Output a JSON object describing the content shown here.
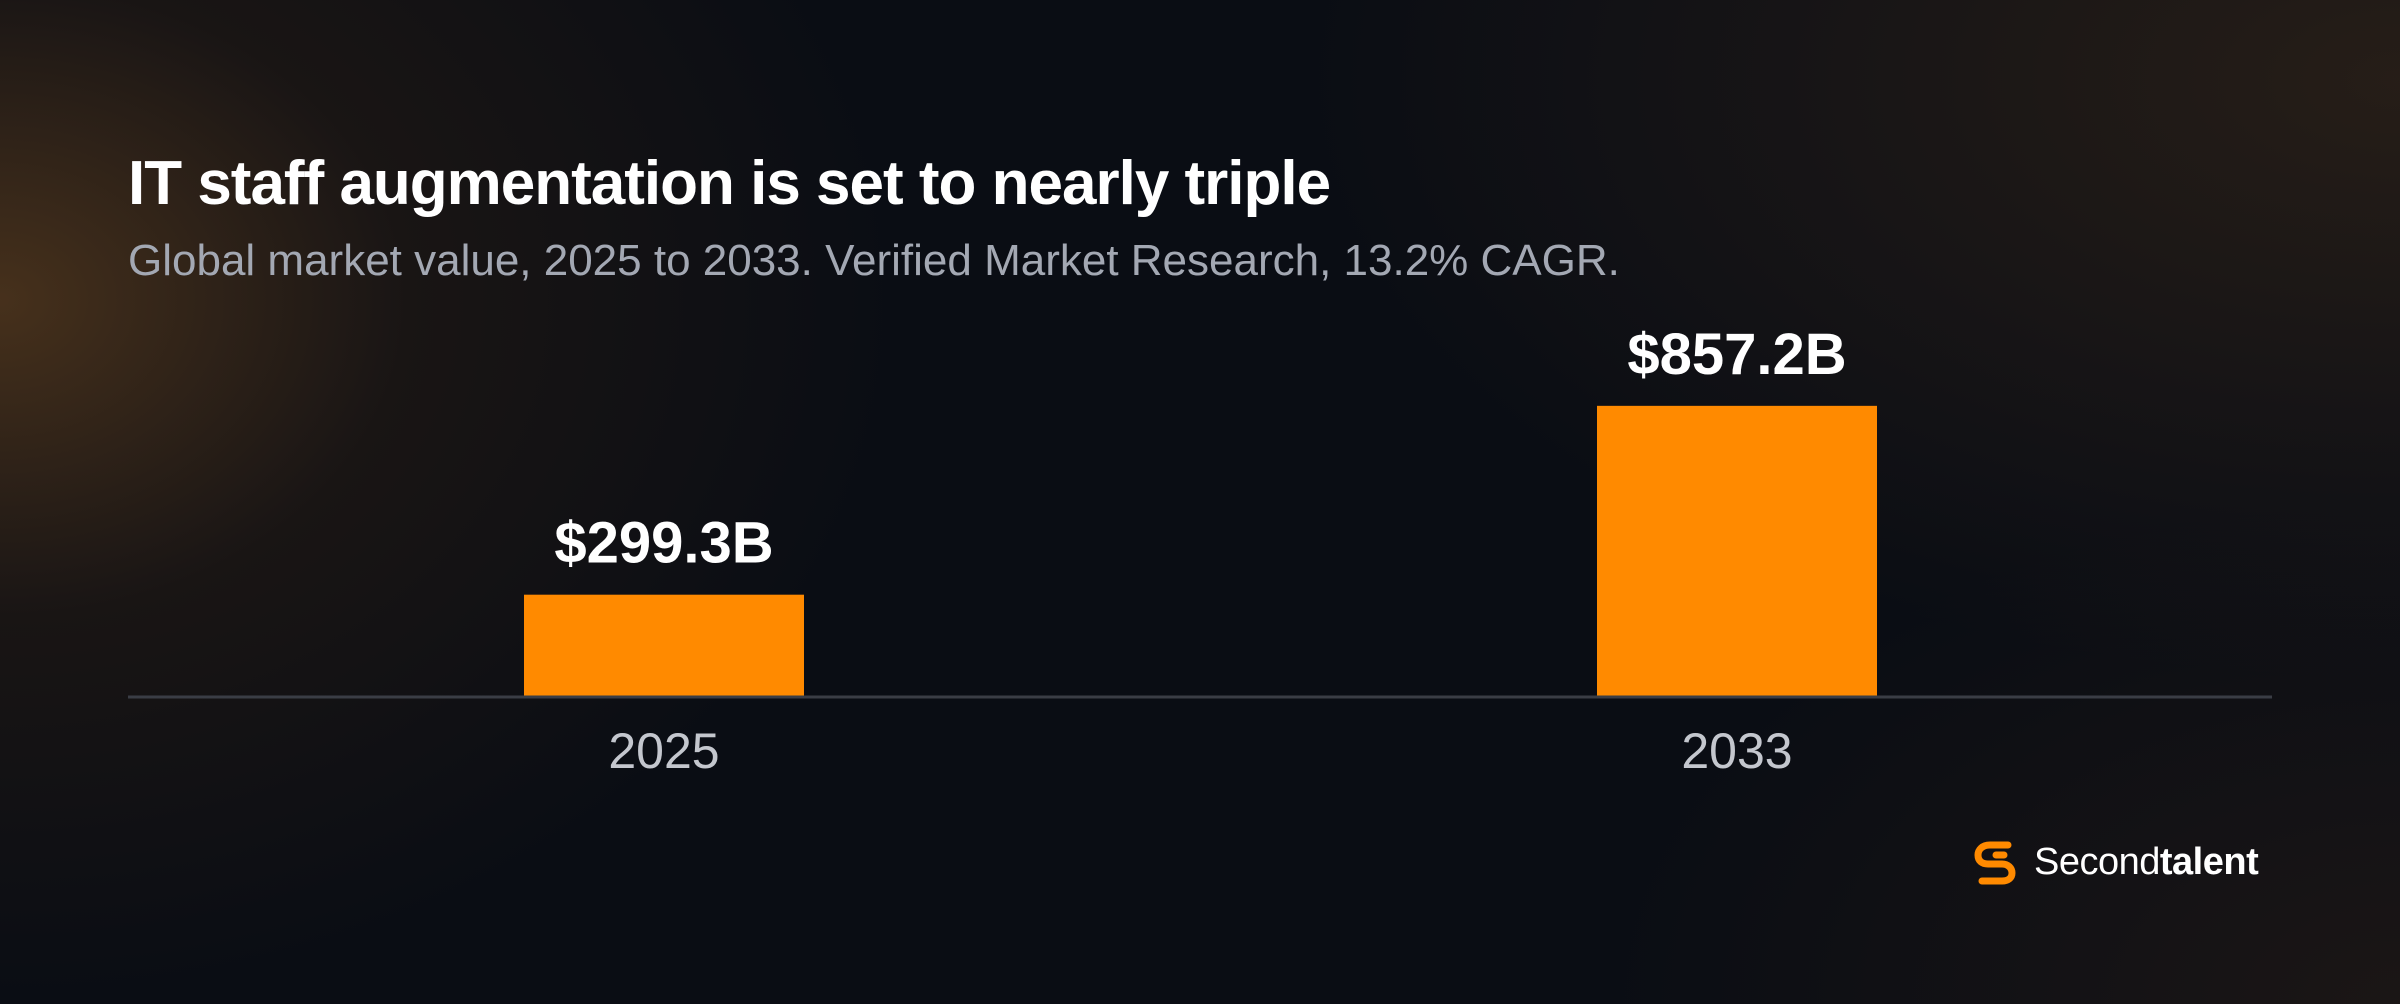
{
  "header": {
    "title": "IT staff augmentation is set to nearly triple",
    "subtitle": "Global market value, 2025 to 2033. Verified Market Research, 13.2% CAGR."
  },
  "brand": {
    "name_regular": "Second",
    "name_bold": "talent",
    "icon": "secondtalent-logo-icon"
  },
  "colors": {
    "accent": "#ff8a00",
    "background": "#0a0d14",
    "baseline": "#3a3d45",
    "label_muted": "#c4c7ce"
  },
  "chart_data": {
    "type": "bar",
    "categories": [
      "2025",
      "2033"
    ],
    "values": [
      299.3,
      857.2
    ],
    "value_labels": [
      "$299.3B",
      "$857.2B"
    ],
    "unit": "B USD",
    "ylim": [
      0,
      1000
    ],
    "grid": false,
    "legend": "none"
  }
}
